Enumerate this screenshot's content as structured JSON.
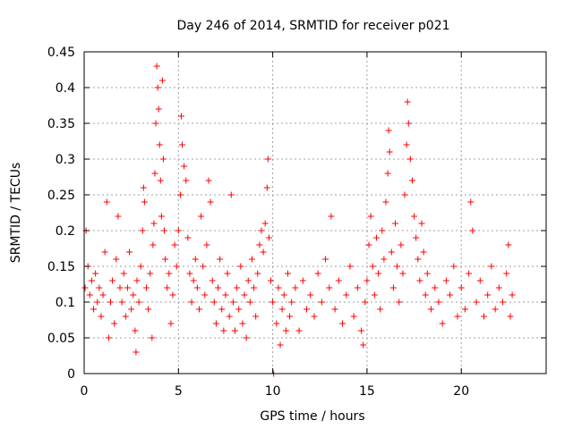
{
  "chart_data": {
    "type": "scatter",
    "title": "Day 246 of 2014, SRMTID for receiver p021",
    "xlabel": "GPS time / hours",
    "ylabel": "SRMTID / TECUs",
    "xlim": [
      0,
      24.5
    ],
    "ylim": [
      0,
      0.45
    ],
    "xticks": [
      0,
      5,
      10,
      15,
      20
    ],
    "xtick_labels": [
      "0",
      "5",
      "10",
      "15",
      "20"
    ],
    "yticks": [
      0,
      0.05,
      0.1,
      0.15,
      0.2,
      0.25,
      0.3,
      0.35,
      0.4,
      0.45
    ],
    "ytick_labels": [
      "0",
      "0.05",
      "0.1",
      "0.15",
      "0.2",
      "0.25",
      "0.3",
      "0.35",
      "0.4",
      "0.45"
    ],
    "grid": true,
    "marker": "+",
    "color": "#ff0000",
    "series": [
      {
        "name": "SRMTID",
        "points": [
          [
            0.05,
            0.12
          ],
          [
            0.1,
            0.2
          ],
          [
            0.2,
            0.15
          ],
          [
            0.3,
            0.11
          ],
          [
            0.4,
            0.13
          ],
          [
            0.5,
            0.09
          ],
          [
            0.6,
            0.14
          ],
          [
            0.7,
            0.1
          ],
          [
            0.8,
            0.12
          ],
          [
            0.9,
            0.08
          ],
          [
            1.0,
            0.11
          ],
          [
            1.1,
            0.17
          ],
          [
            1.2,
            0.24
          ],
          [
            1.3,
            0.05
          ],
          [
            1.4,
            0.1
          ],
          [
            1.5,
            0.13
          ],
          [
            1.6,
            0.07
          ],
          [
            1.7,
            0.16
          ],
          [
            1.8,
            0.22
          ],
          [
            1.9,
            0.12
          ],
          [
            2.0,
            0.1
          ],
          [
            2.1,
            0.14
          ],
          [
            2.2,
            0.08
          ],
          [
            2.3,
            0.12
          ],
          [
            2.4,
            0.17
          ],
          [
            2.5,
            0.09
          ],
          [
            2.6,
            0.11
          ],
          [
            2.7,
            0.06
          ],
          [
            2.75,
            0.03
          ],
          [
            2.8,
            0.13
          ],
          [
            2.9,
            0.1
          ],
          [
            3.0,
            0.15
          ],
          [
            3.1,
            0.2
          ],
          [
            3.15,
            0.26
          ],
          [
            3.2,
            0.24
          ],
          [
            3.3,
            0.12
          ],
          [
            3.4,
            0.09
          ],
          [
            3.5,
            0.14
          ],
          [
            3.6,
            0.05
          ],
          [
            3.65,
            0.18
          ],
          [
            3.7,
            0.21
          ],
          [
            3.75,
            0.28
          ],
          [
            3.8,
            0.35
          ],
          [
            3.85,
            0.43
          ],
          [
            3.9,
            0.4
          ],
          [
            3.95,
            0.37
          ],
          [
            4.0,
            0.32
          ],
          [
            4.05,
            0.27
          ],
          [
            4.1,
            0.22
          ],
          [
            4.15,
            0.41
          ],
          [
            4.2,
            0.3
          ],
          [
            4.25,
            0.2
          ],
          [
            4.3,
            0.16
          ],
          [
            4.4,
            0.12
          ],
          [
            4.5,
            0.14
          ],
          [
            4.6,
            0.07
          ],
          [
            4.7,
            0.11
          ],
          [
            4.8,
            0.18
          ],
          [
            4.9,
            0.15
          ],
          [
            5.0,
            0.2
          ],
          [
            5.1,
            0.25
          ],
          [
            5.15,
            0.36
          ],
          [
            5.2,
            0.32
          ],
          [
            5.3,
            0.29
          ],
          [
            5.4,
            0.27
          ],
          [
            5.5,
            0.19
          ],
          [
            5.6,
            0.14
          ],
          [
            5.7,
            0.1
          ],
          [
            5.8,
            0.13
          ],
          [
            5.9,
            0.16
          ],
          [
            6.0,
            0.12
          ],
          [
            6.1,
            0.09
          ],
          [
            6.2,
            0.22
          ],
          [
            6.3,
            0.15
          ],
          [
            6.4,
            0.11
          ],
          [
            6.5,
            0.18
          ],
          [
            6.6,
            0.27
          ],
          [
            6.7,
            0.24
          ],
          [
            6.8,
            0.13
          ],
          [
            6.9,
            0.1
          ],
          [
            7.0,
            0.07
          ],
          [
            7.1,
            0.12
          ],
          [
            7.2,
            0.16
          ],
          [
            7.3,
            0.09
          ],
          [
            7.4,
            0.06
          ],
          [
            7.5,
            0.11
          ],
          [
            7.6,
            0.14
          ],
          [
            7.7,
            0.08
          ],
          [
            7.8,
            0.25
          ],
          [
            7.9,
            0.1
          ],
          [
            8.0,
            0.06
          ],
          [
            8.1,
            0.12
          ],
          [
            8.2,
            0.09
          ],
          [
            8.3,
            0.15
          ],
          [
            8.4,
            0.07
          ],
          [
            8.5,
            0.11
          ],
          [
            8.6,
            0.05
          ],
          [
            8.7,
            0.13
          ],
          [
            8.8,
            0.1
          ],
          [
            8.9,
            0.16
          ],
          [
            9.0,
            0.12
          ],
          [
            9.1,
            0.08
          ],
          [
            9.2,
            0.14
          ],
          [
            9.3,
            0.18
          ],
          [
            9.4,
            0.2
          ],
          [
            9.5,
            0.17
          ],
          [
            9.6,
            0.21
          ],
          [
            9.7,
            0.26
          ],
          [
            9.75,
            0.3
          ],
          [
            9.8,
            0.19
          ],
          [
            9.9,
            0.13
          ],
          [
            10.0,
            0.1
          ],
          [
            10.05,
            0.0
          ],
          [
            10.2,
            0.07
          ],
          [
            10.3,
            0.12
          ],
          [
            10.4,
            0.04
          ],
          [
            10.5,
            0.09
          ],
          [
            10.6,
            0.11
          ],
          [
            10.7,
            0.06
          ],
          [
            10.8,
            0.14
          ],
          [
            10.9,
            0.08
          ],
          [
            11.0,
            0.1
          ],
          [
            11.2,
            0.12
          ],
          [
            11.4,
            0.06
          ],
          [
            11.6,
            0.13
          ],
          [
            11.8,
            0.09
          ],
          [
            12.0,
            0.11
          ],
          [
            12.2,
            0.08
          ],
          [
            12.4,
            0.14
          ],
          [
            12.6,
            0.1
          ],
          [
            12.8,
            0.16
          ],
          [
            13.0,
            0.12
          ],
          [
            13.1,
            0.22
          ],
          [
            13.3,
            0.09
          ],
          [
            13.5,
            0.13
          ],
          [
            13.7,
            0.07
          ],
          [
            13.9,
            0.11
          ],
          [
            14.1,
            0.15
          ],
          [
            14.3,
            0.08
          ],
          [
            14.5,
            0.12
          ],
          [
            14.7,
            0.06
          ],
          [
            14.8,
            0.04
          ],
          [
            14.9,
            0.1
          ],
          [
            15.0,
            0.13
          ],
          [
            15.1,
            0.18
          ],
          [
            15.2,
            0.22
          ],
          [
            15.3,
            0.15
          ],
          [
            15.4,
            0.11
          ],
          [
            15.5,
            0.19
          ],
          [
            15.6,
            0.14
          ],
          [
            15.7,
            0.09
          ],
          [
            15.8,
            0.2
          ],
          [
            15.9,
            0.16
          ],
          [
            16.0,
            0.24
          ],
          [
            16.1,
            0.28
          ],
          [
            16.15,
            0.34
          ],
          [
            16.2,
            0.31
          ],
          [
            16.3,
            0.17
          ],
          [
            16.4,
            0.12
          ],
          [
            16.5,
            0.21
          ],
          [
            16.6,
            0.15
          ],
          [
            16.7,
            0.1
          ],
          [
            16.8,
            0.18
          ],
          [
            16.9,
            0.14
          ],
          [
            17.0,
            0.25
          ],
          [
            17.1,
            0.32
          ],
          [
            17.15,
            0.38
          ],
          [
            17.2,
            0.35
          ],
          [
            17.3,
            0.3
          ],
          [
            17.4,
            0.27
          ],
          [
            17.5,
            0.22
          ],
          [
            17.6,
            0.19
          ],
          [
            17.7,
            0.16
          ],
          [
            17.8,
            0.13
          ],
          [
            17.9,
            0.21
          ],
          [
            18.0,
            0.17
          ],
          [
            18.1,
            0.11
          ],
          [
            18.2,
            0.14
          ],
          [
            18.4,
            0.09
          ],
          [
            18.6,
            0.12
          ],
          [
            18.8,
            0.1
          ],
          [
            19.0,
            0.07
          ],
          [
            19.2,
            0.13
          ],
          [
            19.4,
            0.11
          ],
          [
            19.6,
            0.15
          ],
          [
            19.8,
            0.08
          ],
          [
            20.0,
            0.12
          ],
          [
            20.2,
            0.09
          ],
          [
            20.4,
            0.14
          ],
          [
            20.5,
            0.24
          ],
          [
            20.6,
            0.2
          ],
          [
            20.8,
            0.1
          ],
          [
            21.0,
            0.13
          ],
          [
            21.2,
            0.08
          ],
          [
            21.4,
            0.11
          ],
          [
            21.6,
            0.15
          ],
          [
            21.8,
            0.09
          ],
          [
            22.0,
            0.12
          ],
          [
            22.2,
            0.1
          ],
          [
            22.4,
            0.14
          ],
          [
            22.5,
            0.18
          ],
          [
            22.6,
            0.08
          ],
          [
            22.7,
            0.11
          ]
        ]
      }
    ]
  }
}
